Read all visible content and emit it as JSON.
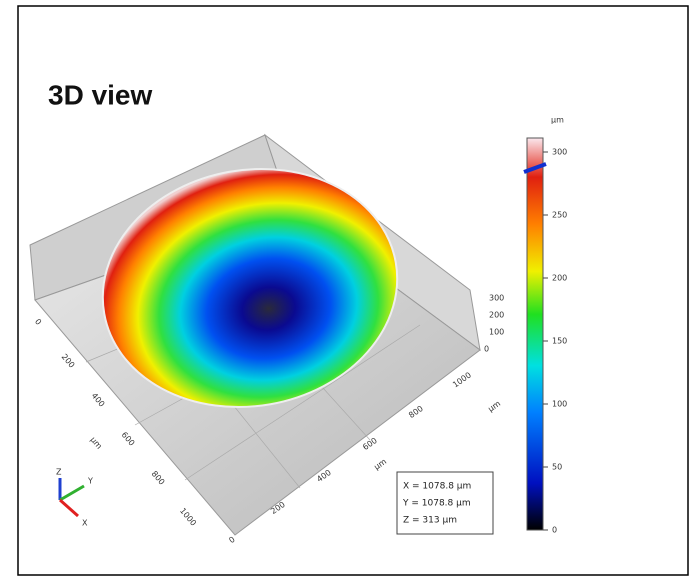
{
  "title": "3D view",
  "colorbar": {
    "unit": "µm",
    "ticks": [
      "0",
      "50",
      "100",
      "150",
      "200",
      "250",
      "300"
    ]
  },
  "axes": {
    "left_ticks": [
      "0",
      "200",
      "400",
      "600",
      "800",
      "1000"
    ],
    "left_label": "µm",
    "front_ticks": [
      "0",
      "200",
      "400",
      "600",
      "800",
      "1000"
    ],
    "front_label": "µm",
    "z_ticks": [
      "0",
      "100",
      "200",
      "300"
    ]
  },
  "info": [
    "X = 1078.8 µm",
    "Y = 1078.8 µm",
    "Z = 313 µm"
  ],
  "triad": [
    "Z",
    "Y",
    "X"
  ]
}
